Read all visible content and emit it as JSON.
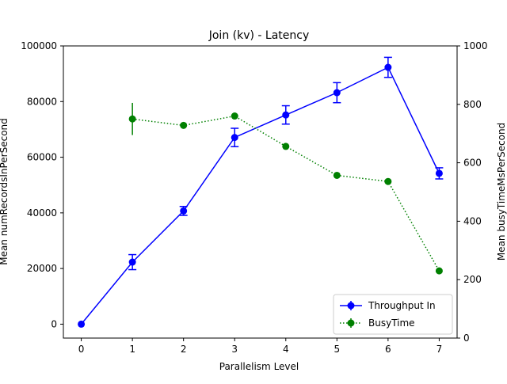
{
  "chart_data": {
    "type": "line",
    "title": "Join (kv) - Latency",
    "xlabel": "Parallelism Level",
    "ylabel_left": "Mean numRecordsInPerSecond",
    "ylabel_right": "Mean busyTimeMsPerSecond",
    "x": [
      0,
      1,
      2,
      3,
      4,
      5,
      6,
      7
    ],
    "xlim": [
      -0.35,
      7.35
    ],
    "ylim_left": [
      -5000,
      100000
    ],
    "ylim_right": [
      0,
      1000
    ],
    "xticks": [
      "0",
      "1",
      "2",
      "3",
      "4",
      "5",
      "6",
      "7"
    ],
    "yticks_left": [
      "0",
      "20000",
      "40000",
      "60000",
      "80000",
      "100000"
    ],
    "yticks_right": [
      "0",
      "200",
      "400",
      "600",
      "800",
      "1000"
    ],
    "grid": false,
    "legend_placement": "lower-right",
    "series": [
      {
        "name": "Throughput In",
        "axis": "left",
        "color": "#0000ff",
        "linestyle": "solid",
        "x": [
          0,
          1,
          2,
          3,
          4,
          5,
          6,
          7
        ],
        "values": [
          0,
          22300,
          40700,
          67100,
          75200,
          83200,
          92300,
          54200
        ],
        "errors": [
          0,
          2700,
          1600,
          3300,
          3300,
          3600,
          3600,
          2000
        ]
      },
      {
        "name": "BusyTime",
        "axis": "right",
        "color": "#008000",
        "linestyle": "dotted",
        "x": [
          1,
          2,
          3,
          4,
          5,
          6,
          7
        ],
        "values": [
          750,
          728,
          760,
          656,
          557,
          536,
          230
        ],
        "errors": [
          55,
          0,
          0,
          0,
          0,
          0,
          0
        ]
      }
    ]
  }
}
